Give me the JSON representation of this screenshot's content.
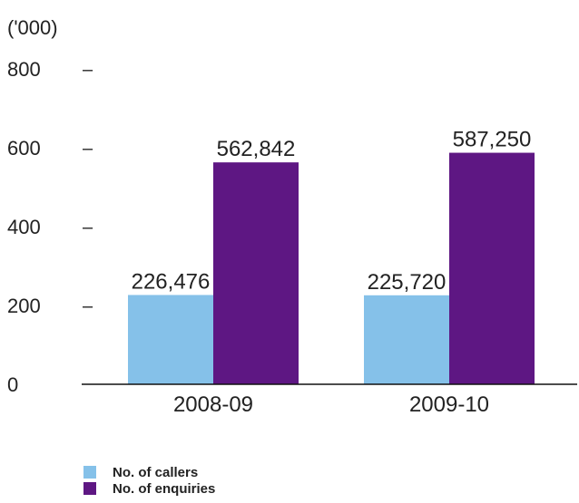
{
  "chart_data": {
    "type": "bar",
    "unit_label": "('000)",
    "categories": [
      "2008-09",
      "2009-10"
    ],
    "series": [
      {
        "name": "No. of callers",
        "values": [
          226476,
          225720
        ],
        "labels": [
          "226,476",
          "225,720"
        ],
        "color": "#85c1e9"
      },
      {
        "name": "No. of enquiries",
        "values": [
          562842,
          587250
        ],
        "labels": [
          "562,842",
          "587,250"
        ],
        "color": "#5e1783"
      }
    ],
    "y_ticks": [
      {
        "value": 0,
        "label": "0"
      },
      {
        "value": 200000,
        "label": "200"
      },
      {
        "value": 400000,
        "label": "400"
      },
      {
        "value": 600000,
        "label": "600"
      },
      {
        "value": 800000,
        "label": "800"
      }
    ],
    "tick_mark": "–",
    "ylim": [
      0,
      800000
    ],
    "grid": false,
    "legend_position": "bottom-left"
  }
}
